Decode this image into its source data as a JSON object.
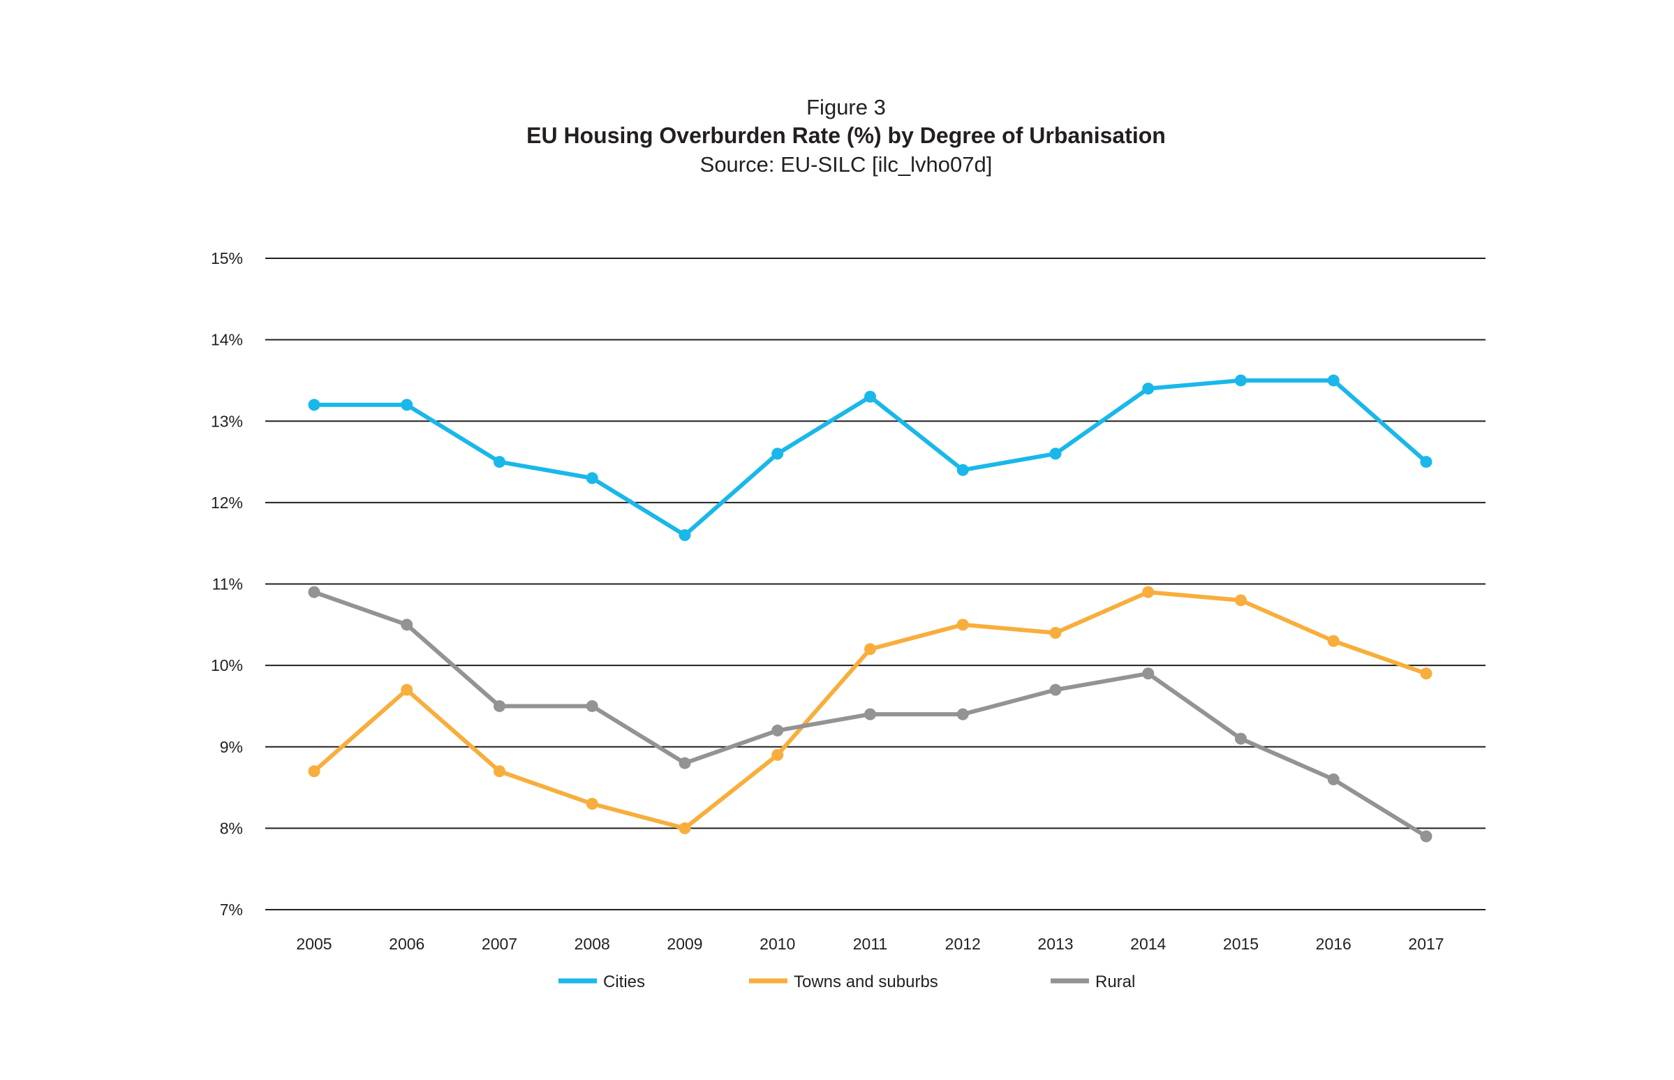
{
  "figure": {
    "label": "Figure 3",
    "title": "EU Housing Overburden Rate (%) by Degree of Urbanisation",
    "source": "Source: EU-SILC [ilc_lvho07d]"
  },
  "chart_data": {
    "type": "line",
    "title": "EU Housing Overburden Rate (%) by Degree of Urbanisation",
    "subtitle": "Source: EU-SILC [ilc_lvho07d]",
    "xlabel": "",
    "ylabel": "",
    "x": [
      "2005",
      "2006",
      "2007",
      "2008",
      "2009",
      "2010",
      "2011",
      "2012",
      "2013",
      "2014",
      "2015",
      "2016",
      "2017"
    ],
    "ylim": [
      7,
      15
    ],
    "yticks": [
      15,
      14,
      13,
      12,
      11,
      10,
      9,
      8,
      7
    ],
    "ytick_labels": [
      "15%",
      "14%",
      "13%",
      "12%",
      "11%",
      "10%",
      "9%",
      "8%",
      "7%"
    ],
    "grid": true,
    "legend_position": "bottom",
    "series": [
      {
        "name": "Cities",
        "color": "#1ab7ea",
        "values": [
          13.2,
          13.2,
          12.5,
          12.3,
          11.6,
          12.6,
          13.3,
          12.4,
          12.6,
          13.4,
          13.5,
          13.5,
          12.5
        ]
      },
      {
        "name": "Towns and suburbs",
        "color": "#f8ae3c",
        "values": [
          8.7,
          9.7,
          8.7,
          8.3,
          8.0,
          8.9,
          10.2,
          10.5,
          10.4,
          10.9,
          10.8,
          10.3,
          9.9
        ]
      },
      {
        "name": "Rural",
        "color": "#939393",
        "values": [
          10.9,
          10.5,
          9.5,
          9.5,
          8.8,
          9.2,
          9.4,
          9.4,
          9.7,
          9.9,
          9.1,
          8.6,
          7.9
        ]
      }
    ]
  }
}
